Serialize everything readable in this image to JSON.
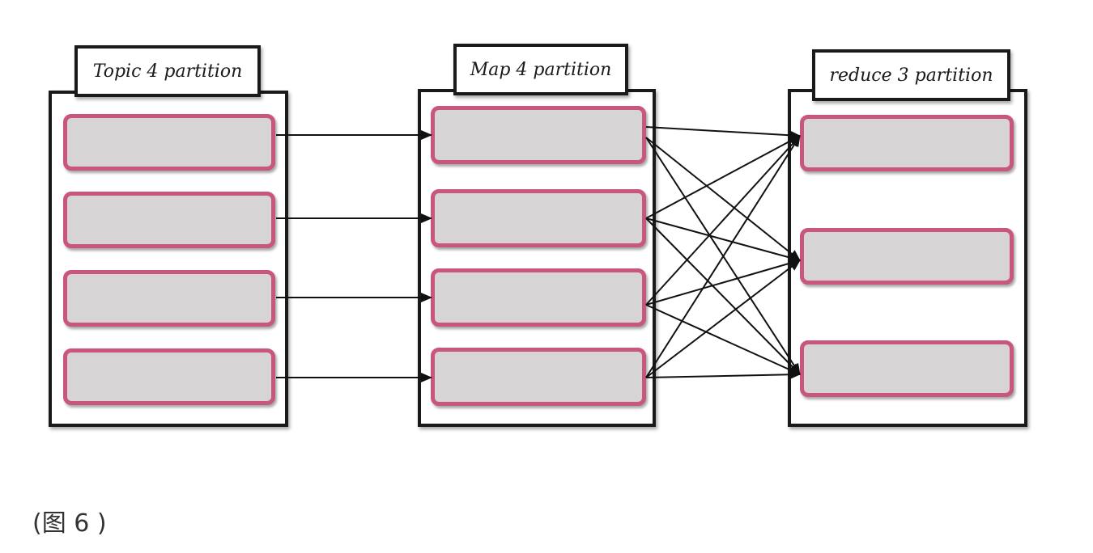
{
  "groups": {
    "topic": {
      "label": "Topic 4 partition",
      "partition_count": 4
    },
    "map": {
      "label": "Map 4 partition",
      "partition_count": 4
    },
    "reduce": {
      "label": "reduce 3 partition",
      "partition_count": 3
    }
  },
  "connections": {
    "topic_to_map": "one-to-one",
    "map_to_reduce": "all-to-all"
  },
  "caption": "(图 6 )",
  "colors": {
    "partition_fill": "#d7d4d6",
    "partition_border": "#c9567f",
    "box_border": "#1a1a1a",
    "arrow": "#111111"
  }
}
